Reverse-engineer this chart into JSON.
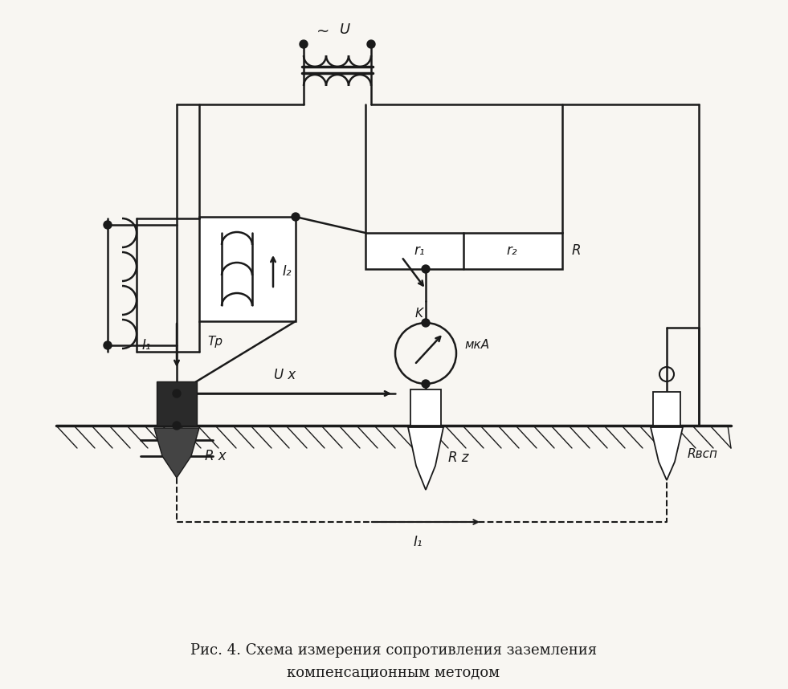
{
  "title_line1": "Рис. 4. Схема измерения сопротивления заземления",
  "title_line2": "компенсационным методом",
  "title_fontsize": 13,
  "bg_color": "#f8f6f2",
  "line_color": "#1a1a1a",
  "line_width": 1.8,
  "labels": {
    "U": "U",
    "tilde": "~",
    "I2": "I₂",
    "I1_left": "I₁",
    "Tp": "Tp",
    "K": "K",
    "r1": "r₁",
    "r2": "r₂",
    "R": "R",
    "mka": "мкА",
    "Ux": "U x",
    "Rx": "R x",
    "Rz": "R z",
    "Rvsp": "Rвсп",
    "I1_bottom": "I₁"
  }
}
